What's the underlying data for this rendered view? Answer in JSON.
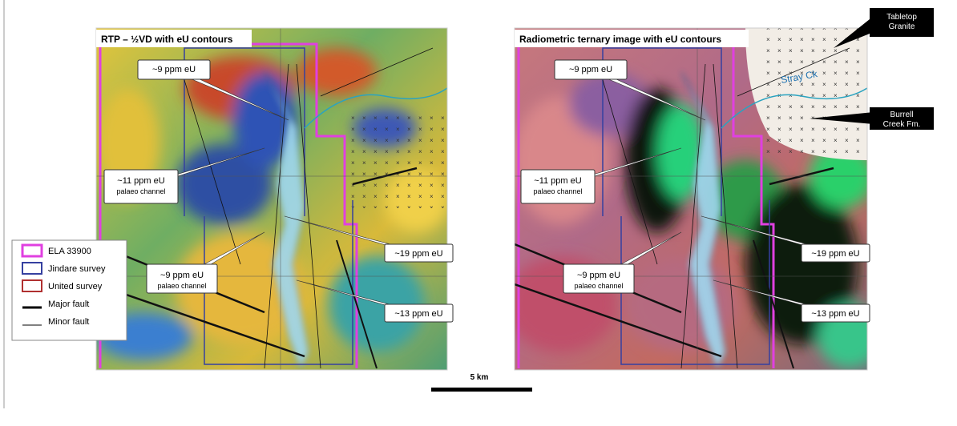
{
  "panels": [
    {
      "title": "RTP – ½VD with eU contours",
      "callouts": [
        {
          "text": "~9 ppm eU"
        },
        {
          "text": "~11 ppm eU",
          "sub": "palaeo channel"
        },
        {
          "text": "~19 ppm eU"
        },
        {
          "text": "~9 ppm eU",
          "sub": "palaeo channel"
        },
        {
          "text": "~13 ppm eU"
        }
      ]
    },
    {
      "title": "Radiometric ternary image with eU contours",
      "callouts": [
        {
          "text": "~9 ppm eU"
        },
        {
          "text": "~11 ppm eU",
          "sub": "palaeo channel"
        },
        {
          "text": "~19 ppm eU"
        },
        {
          "text": "~9 ppm eU",
          "sub": "palaeo channel"
        },
        {
          "text": "~13 ppm eU"
        }
      ],
      "labels": {
        "granite": "Tabletop Granite",
        "burrell": "Burrell Creek Fm.",
        "creek": "Stray Ck"
      }
    }
  ],
  "legend": [
    "ELA 33900",
    "Jindare survey",
    "United survey",
    "Major fault",
    "Minor fault"
  ],
  "scale_bar": "5 km"
}
